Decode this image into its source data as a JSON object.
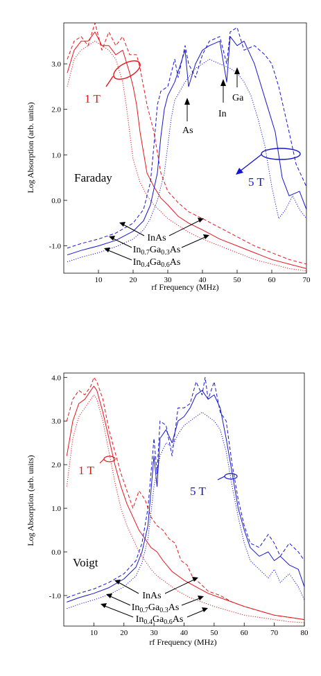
{
  "chart_data": [
    {
      "type": "line",
      "panel": "top",
      "geometry_label": "Faraday",
      "xlabel": "rf Frequency (MHz)",
      "ylabel": "Log Absorption (arb. units)",
      "xlim": [
        0,
        70
      ],
      "ylim": [
        -1.6,
        3.9
      ],
      "x_ticks": [
        "10",
        "20",
        "30",
        "40",
        "50",
        "60",
        "70"
      ],
      "y_ticks": [
        "-1.0",
        "0.0",
        "1.0",
        "2.0",
        "3.0"
      ],
      "field_labels": [
        {
          "text": "1 T",
          "color": "#e8141c"
        },
        {
          "text": "5 T",
          "color": "#1414d2"
        }
      ],
      "annotations": [
        "As",
        "In",
        "Ga"
      ],
      "material_labels": [
        "InAs",
        "In0.7Ga0.3As",
        "In0.4Ga0.6As"
      ],
      "series": [
        {
          "color": "#e8141c",
          "style": "dashed",
          "x": [
            1,
            3,
            5,
            7,
            9,
            11,
            13,
            15,
            17,
            19,
            21,
            22,
            23,
            24,
            26,
            28,
            30,
            33,
            36,
            40,
            45,
            50,
            55,
            60,
            65,
            70
          ],
          "y": [
            3.1,
            3.5,
            3.6,
            3.4,
            3.9,
            3.3,
            3.7,
            3.4,
            3.6,
            3.2,
            3.2,
            2.9,
            2.5,
            2.1,
            1.5,
            0.6,
            0.2,
            -0.05,
            -0.25,
            -0.4,
            -0.6,
            -0.8,
            -1.0,
            -1.15,
            -1.3,
            -1.4
          ]
        },
        {
          "color": "#e8141c",
          "style": "solid",
          "x": [
            1,
            3,
            5,
            7,
            9,
            11,
            13,
            15,
            17,
            19,
            20,
            21,
            22,
            24,
            26,
            28,
            30,
            33,
            36,
            40,
            45,
            50,
            55,
            60,
            65,
            70
          ],
          "y": [
            2.8,
            3.3,
            3.5,
            3.5,
            3.7,
            3.4,
            3.4,
            3.2,
            3.3,
            2.8,
            2.5,
            2.1,
            1.5,
            0.6,
            0.3,
            0.05,
            -0.1,
            -0.35,
            -0.5,
            -0.65,
            -0.85,
            -1.0,
            -1.15,
            -1.3,
            -1.4,
            -1.5
          ]
        },
        {
          "color": "#e8141c",
          "style": "dotted",
          "x": [
            1,
            3,
            5,
            7,
            9,
            11,
            13,
            15,
            17,
            18,
            19,
            20,
            22,
            24,
            26,
            28,
            30,
            33,
            36,
            40,
            45,
            50,
            55,
            60,
            65,
            70
          ],
          "y": [
            2.5,
            3.1,
            3.3,
            3.4,
            3.5,
            3.4,
            3.3,
            3.1,
            2.6,
            2.1,
            1.5,
            0.9,
            0.4,
            0.1,
            -0.1,
            -0.25,
            -0.4,
            -0.55,
            -0.7,
            -0.85,
            -1.0,
            -1.15,
            -1.3,
            -1.4,
            -1.5,
            -1.55
          ]
        },
        {
          "color": "#1414d2",
          "style": "dashed",
          "x": [
            1,
            5,
            10,
            15,
            20,
            23,
            25,
            26,
            27,
            28,
            30,
            32,
            33,
            35,
            36,
            38,
            40,
            42,
            45,
            47,
            48,
            50,
            52,
            55,
            58,
            60,
            62,
            65,
            67,
            70
          ],
          "y": [
            -1.05,
            -0.95,
            -0.85,
            -0.72,
            -0.5,
            -0.2,
            0.4,
            1.2,
            2.1,
            2.4,
            2.5,
            3.1,
            2.7,
            3.4,
            3.0,
            2.7,
            3.2,
            3.5,
            3.6,
            3.0,
            3.7,
            3.8,
            3.3,
            3.4,
            3.2,
            3.0,
            2.5,
            1.5,
            0.8,
            0.3
          ]
        },
        {
          "color": "#1414d2",
          "style": "solid",
          "x": [
            1,
            5,
            10,
            15,
            20,
            23,
            25,
            27,
            28,
            29,
            30,
            32,
            35,
            36,
            38,
            40,
            42,
            45,
            47,
            48,
            50,
            52,
            55,
            57,
            59,
            61,
            63,
            65,
            68,
            70
          ],
          "y": [
            -1.2,
            -1.1,
            -1.0,
            -0.88,
            -0.68,
            -0.45,
            -0.1,
            0.6,
            1.4,
            2.0,
            2.3,
            2.6,
            3.3,
            2.5,
            3.0,
            3.3,
            3.4,
            3.5,
            2.6,
            3.6,
            3.4,
            3.5,
            3.0,
            2.5,
            2.0,
            1.5,
            0.5,
            0.1,
            0.2,
            -0.2
          ]
        },
        {
          "color": "#1414d2",
          "style": "dotted",
          "x": [
            1,
            5,
            10,
            15,
            20,
            23,
            25,
            27,
            29,
            30,
            31,
            32,
            35,
            38,
            40,
            42,
            45,
            48,
            50,
            52,
            54,
            56,
            58,
            60,
            62,
            64,
            66,
            68,
            70
          ],
          "y": [
            -1.35,
            -1.25,
            -1.15,
            -1.02,
            -0.85,
            -0.65,
            -0.4,
            0.0,
            0.6,
            1.2,
            1.8,
            2.2,
            2.6,
            2.9,
            3.0,
            3.1,
            3.0,
            2.9,
            2.8,
            2.6,
            2.3,
            1.8,
            1.2,
            0.3,
            -0.4,
            -0.2,
            0.1,
            -0.2,
            -0.4
          ]
        }
      ]
    },
    {
      "type": "line",
      "panel": "bottom",
      "geometry_label": "Voigt",
      "xlabel": "rf Frequency (MHz)",
      "ylabel": "Log Absorption (arb. units)",
      "xlim": [
        0,
        80
      ],
      "ylim": [
        -1.7,
        4.1
      ],
      "x_ticks": [
        "10",
        "20",
        "30",
        "40",
        "50",
        "60",
        "70",
        "80"
      ],
      "y_ticks": [
        "-1.0",
        "0.0",
        "1.0",
        "2.0",
        "3.0",
        "4.0"
      ],
      "field_labels": [
        {
          "text": "1 T",
          "color": "#e8141c"
        },
        {
          "text": "5 T",
          "color": "#1414d2"
        }
      ],
      "annotations": [],
      "material_labels": [
        "InAs",
        "In0.7Ga0.3As",
        "In0.4Ga0.6As"
      ],
      "series": [
        {
          "color": "#e8141c",
          "style": "dashed",
          "x": [
            1,
            3,
            5,
            7,
            9,
            10,
            11,
            13,
            15,
            17,
            19,
            21,
            23,
            25,
            27,
            29,
            31,
            33,
            35,
            37,
            39,
            41,
            43,
            45,
            48,
            52,
            56,
            60,
            65,
            70,
            75,
            80
          ],
          "y": [
            3.0,
            3.5,
            3.7,
            3.6,
            3.8,
            4.0,
            3.9,
            3.5,
            2.8,
            2.3,
            1.8,
            1.4,
            1.0,
            1.4,
            1.2,
            0.8,
            0.6,
            0.5,
            0.3,
            0.2,
            -0.2,
            -0.3,
            -0.6,
            -0.7,
            -0.9,
            -1.0,
            -1.15,
            -1.25,
            -1.35,
            -1.45,
            -1.5,
            -1.55
          ]
        },
        {
          "color": "#e8141c",
          "style": "solid",
          "x": [
            1,
            3,
            5,
            7,
            9,
            10,
            11,
            13,
            15,
            17,
            19,
            21,
            23,
            25,
            27,
            29,
            31,
            33,
            36,
            40,
            44,
            48,
            52,
            56,
            60,
            65,
            70,
            75,
            80
          ],
          "y": [
            2.2,
            3.0,
            3.4,
            3.5,
            3.7,
            3.8,
            3.7,
            3.2,
            2.6,
            2.0,
            1.5,
            1.1,
            0.8,
            0.5,
            0.3,
            0.1,
            0.0,
            -0.2,
            -0.45,
            -0.65,
            -0.8,
            -0.95,
            -1.05,
            -1.15,
            -1.25,
            -1.35,
            -1.45,
            -1.5,
            -1.55
          ]
        },
        {
          "color": "#e8141c",
          "style": "dotted",
          "x": [
            1,
            3,
            5,
            7,
            9,
            10,
            11,
            13,
            15,
            17,
            19,
            21,
            23,
            25,
            27,
            29,
            31,
            34,
            38,
            42,
            46,
            50,
            55,
            60,
            65,
            70,
            75,
            80
          ],
          "y": [
            1.5,
            2.6,
            3.1,
            3.3,
            3.5,
            3.6,
            3.5,
            3.0,
            2.3,
            1.6,
            1.0,
            0.6,
            0.3,
            0.0,
            -0.2,
            -0.4,
            -0.55,
            -0.7,
            -0.9,
            -1.05,
            -1.15,
            -1.25,
            -1.35,
            -1.45,
            -1.5,
            -1.55,
            -1.6,
            -1.62
          ]
        },
        {
          "color": "#1414d2",
          "style": "dashed",
          "x": [
            1,
            5,
            10,
            15,
            20,
            24,
            26,
            28,
            30,
            31,
            32,
            34,
            36,
            38,
            40,
            42,
            44,
            46,
            47,
            48,
            50,
            52,
            54,
            56,
            58,
            60,
            62,
            65,
            68,
            70,
            72,
            75,
            78,
            80
          ],
          "y": [
            -1.05,
            -0.95,
            -0.85,
            -0.7,
            -0.5,
            -0.2,
            0.2,
            1.0,
            2.6,
            1.8,
            3.0,
            2.9,
            2.2,
            3.3,
            3.3,
            3.4,
            3.9,
            3.6,
            4.0,
            3.5,
            3.9,
            3.2,
            3.0,
            2.0,
            1.2,
            0.6,
            0.2,
            0.1,
            0.4,
            0.2,
            -0.1,
            0.2,
            0.0,
            -0.2
          ]
        },
        {
          "color": "#1414d2",
          "style": "solid",
          "x": [
            1,
            5,
            10,
            15,
            20,
            24,
            26,
            28,
            30,
            31,
            32,
            34,
            36,
            38,
            40,
            42,
            44,
            46,
            48,
            50,
            52,
            54,
            56,
            58,
            60,
            62,
            65,
            68,
            70,
            72,
            75,
            78,
            80
          ],
          "y": [
            -1.15,
            -1.05,
            -0.95,
            -0.82,
            -0.62,
            -0.35,
            0.0,
            0.6,
            2.2,
            1.5,
            2.6,
            2.8,
            2.5,
            3.0,
            3.1,
            3.3,
            3.6,
            3.7,
            3.5,
            3.6,
            3.3,
            2.6,
            1.8,
            1.0,
            0.5,
            0.1,
            -0.1,
            0.0,
            -0.2,
            -0.1,
            -0.3,
            -0.4,
            -0.8
          ]
        },
        {
          "color": "#1414d2",
          "style": "dotted",
          "x": [
            1,
            5,
            10,
            15,
            20,
            24,
            26,
            28,
            30,
            32,
            34,
            36,
            38,
            40,
            42,
            44,
            46,
            48,
            50,
            52,
            54,
            56,
            58,
            60,
            62,
            65,
            68,
            70,
            72,
            75,
            78,
            80
          ],
          "y": [
            -1.3,
            -1.2,
            -1.1,
            -0.98,
            -0.8,
            -0.55,
            -0.25,
            0.3,
            1.5,
            2.2,
            2.5,
            2.4,
            2.7,
            2.9,
            3.0,
            3.1,
            3.2,
            3.1,
            3.0,
            2.8,
            2.3,
            1.5,
            0.8,
            0.2,
            -0.2,
            -0.4,
            -0.6,
            -0.4,
            -0.7,
            -0.5,
            -0.8,
            -1.1
          ]
        }
      ]
    }
  ]
}
